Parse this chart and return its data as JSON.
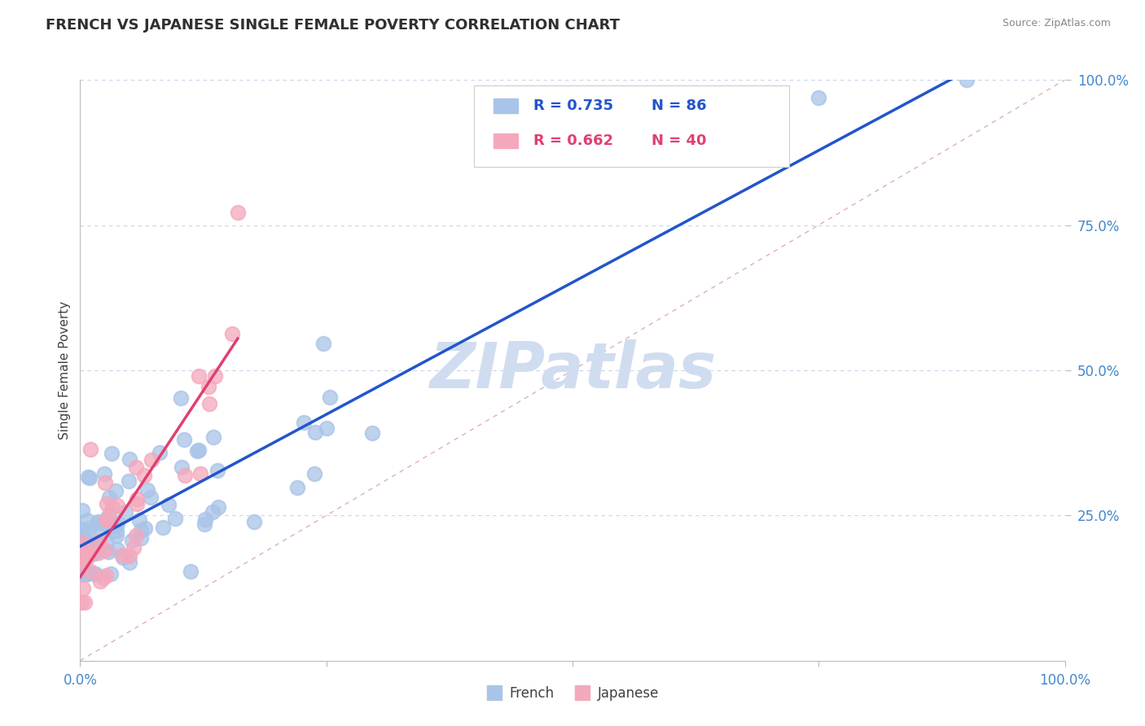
{
  "title": "FRENCH VS JAPANESE SINGLE FEMALE POVERTY CORRELATION CHART",
  "source": "Source: ZipAtlas.com",
  "ylabel": "Single Female Poverty",
  "xlim": [
    0,
    1.0
  ],
  "ylim": [
    0,
    1.0
  ],
  "ytick_labels": [
    "25.0%",
    "50.0%",
    "75.0%",
    "100.0%"
  ],
  "ytick_positions": [
    0.25,
    0.5,
    0.75,
    1.0
  ],
  "french_R": "0.735",
  "french_N": "86",
  "japanese_R": "0.662",
  "japanese_N": "40",
  "french_color": "#a8c4e8",
  "japanese_color": "#f4a8bc",
  "french_line_color": "#2255cc",
  "japanese_line_color": "#e04070",
  "diagonal_color": "#e0b0b8",
  "background_color": "#ffffff",
  "grid_color": "#c8d4e8",
  "title_color": "#303030",
  "axis_label_color": "#404040",
  "tick_label_color": "#4488cc",
  "watermark_color": "#d0ddf0",
  "source_color": "#888888"
}
